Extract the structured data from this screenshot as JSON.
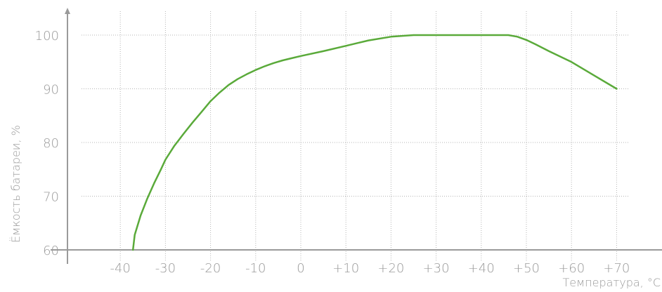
{
  "chart_data": {
    "type": "line",
    "title": "",
    "xlabel": "Температура, °C",
    "ylabel": "Ёмкость батареи, %",
    "xlim": [
      -47,
      77
    ],
    "ylim": [
      60,
      105
    ],
    "x_ticks": [
      -40,
      -30,
      -20,
      -10,
      0,
      10,
      20,
      30,
      40,
      50,
      60,
      70
    ],
    "x_tick_labels": [
      "-40",
      "-30",
      "-20",
      "-10",
      "0",
      "+10",
      "+20",
      "+30",
      "+40",
      "+50",
      "+60",
      "+70"
    ],
    "y_ticks": [
      60,
      70,
      80,
      90,
      100
    ],
    "y_tick_labels": [
      "60",
      "70",
      "80",
      "90",
      "100"
    ],
    "grid": true,
    "legend": "none",
    "colors": {
      "series": "#5aaa3a",
      "axis": "#9a9a9a",
      "grid": "#b5b5b5",
      "text": "#9a9a9a"
    },
    "series": [
      {
        "x": [
          -37.2,
          -36.8,
          -35.5,
          -34,
          -32.5,
          -31,
          -30,
          -28,
          -26,
          -24,
          -22,
          -20,
          -18,
          -16,
          -14,
          -12,
          -10,
          -8,
          -6,
          -4,
          -2,
          0,
          5,
          10,
          15,
          20,
          25,
          30,
          35,
          40,
          46,
          48,
          50,
          52,
          55,
          60,
          65,
          70
        ],
        "y": [
          60,
          62.8,
          66.4,
          69.6,
          72.4,
          75,
          76.8,
          79.4,
          81.6,
          83.7,
          85.7,
          87.7,
          89.3,
          90.7,
          91.8,
          92.7,
          93.5,
          94.2,
          94.8,
          95.3,
          95.7,
          96.1,
          97,
          98,
          99,
          99.7,
          100,
          100,
          100,
          100,
          100,
          99.7,
          99.1,
          98.3,
          97,
          95,
          92.5,
          90
        ]
      }
    ]
  }
}
